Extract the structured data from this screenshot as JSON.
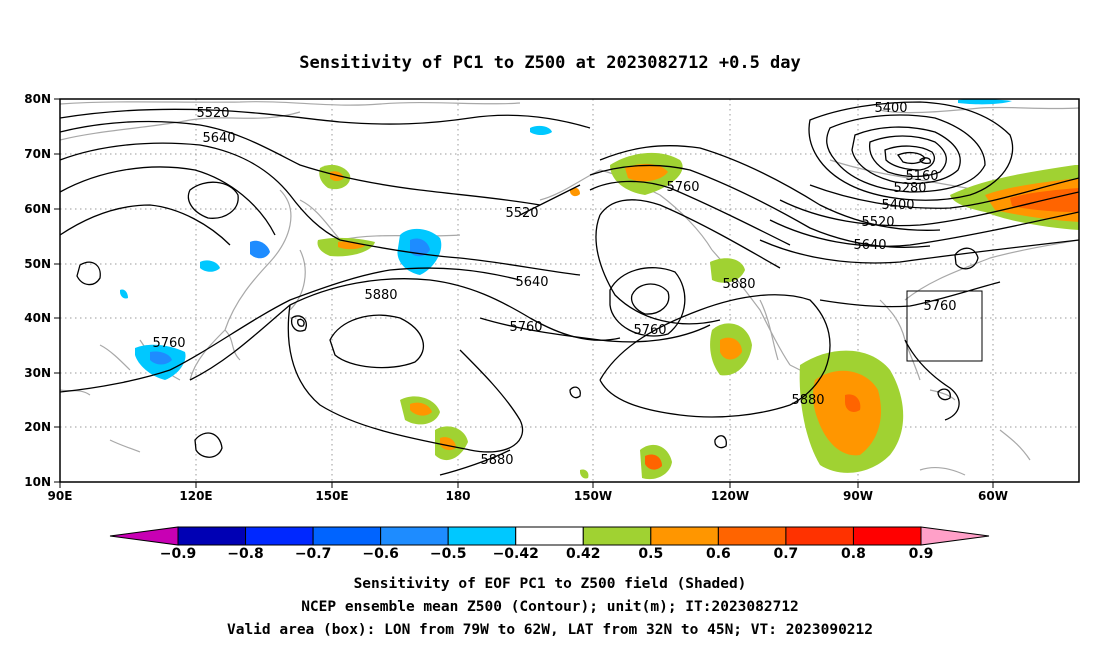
{
  "title": "Sensitivity of PC1 to Z500 at 2023082712 +0.5 day",
  "lat_ticks": [
    "80N",
    "70N",
    "60N",
    "50N",
    "40N",
    "30N",
    "20N",
    "10N"
  ],
  "lon_ticks": [
    "90E",
    "120E",
    "150E",
    "180",
    "150W",
    "120W",
    "90W",
    "60W"
  ],
  "contour_labels": [
    "5520",
    "5640",
    "5520",
    "5640",
    "5760",
    "5880",
    "5760",
    "5760",
    "5400",
    "5160",
    "5280",
    "5400",
    "5520",
    "5640",
    "5760",
    "5880",
    "5880",
    "5880",
    "5760"
  ],
  "colorbar": {
    "labels": [
      "-0.9",
      "-0.8",
      "-0.7",
      "-0.6",
      "-0.5",
      "-0.42",
      "0.42",
      "0.5",
      "0.6",
      "0.7",
      "0.8",
      "0.9"
    ],
    "colors": [
      "#0000b4",
      "#0028ff",
      "#0064ff",
      "#1e8cff",
      "#00c8ff",
      "#ffffff",
      "#a0d232",
      "#ff9600",
      "#ff6400",
      "#ff3200",
      "#ff0000"
    ],
    "low_end_color": "#c800b4",
    "high_end_color": "#ffa0c8"
  },
  "captions": [
    "Sensitivity of EOF PC1 to Z500 field (Shaded)",
    "NCEP ensemble mean Z500 (Contour); unit(m); IT:2023082712",
    "Valid area (box): LON from 79W to 62W, LAT from 32N to 45N; VT: 2023090212"
  ]
}
